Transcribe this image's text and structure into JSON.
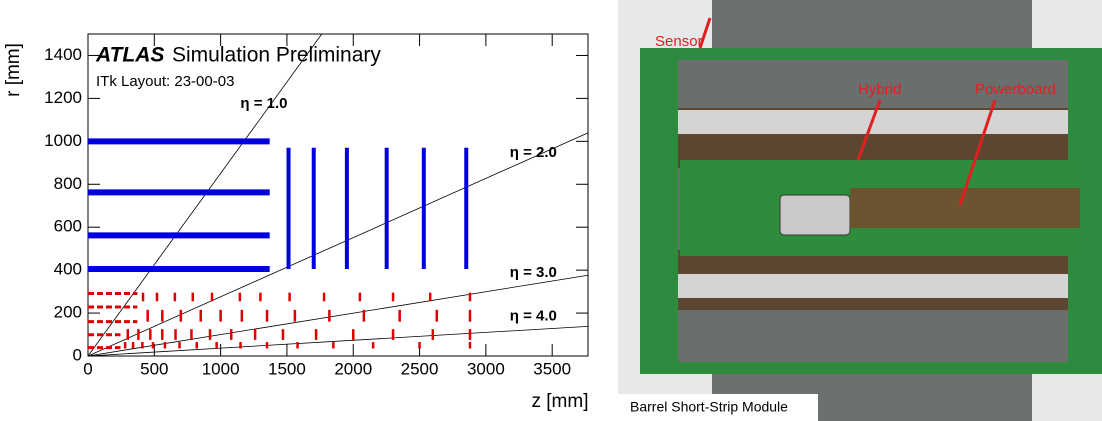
{
  "chart_data": {
    "type": "layout",
    "title": "Simulation Preliminary",
    "experiment": "ATLAS",
    "subtitle": "ITk Layout: 23-00-03",
    "x_label": "z [mm]",
    "y_label": "r [mm]",
    "xlim": [
      0,
      3770
    ],
    "ylim": [
      0,
      1500
    ],
    "xticks": [
      0,
      500,
      1000,
      1500,
      2000,
      2500,
      3000,
      3500
    ],
    "yticks": [
      0,
      200,
      400,
      600,
      800,
      1000,
      1200,
      1400
    ],
    "eta_lines": [
      {
        "value": 1,
        "label": "η = 1.0"
      },
      {
        "value": 2,
        "label": "η = 2.0"
      },
      {
        "value": 3,
        "label": "η = 3.0"
      },
      {
        "value": 4,
        "label": "η = 4.0"
      }
    ],
    "strip_color": "#0000dd",
    "pixel_color": "#dd0000",
    "strip_barrel": {
      "r": [
        405,
        562,
        762,
        1000
      ],
      "z": [
        0,
        1370
      ]
    },
    "strip_endcap": {
      "z": [
        1512,
        1702,
        1952,
        2252,
        2532,
        2852
      ],
      "r": [
        405,
        970
      ]
    },
    "pixel_barrel": {
      "r": [
        39,
        99,
        160,
        228,
        291
      ],
      "z_end": [
        245,
        245,
        372,
        372,
        372
      ]
    },
    "pixel_rings": [
      {
        "r": [
          255,
          295
        ],
        "z": [
          415,
          520,
          655,
          790,
          935,
          1145,
          1300,
          1520,
          1780,
          2050,
          2300,
          2580,
          2880
        ]
      },
      {
        "r": [
          160,
          215
        ],
        "z": [
          450,
          560,
          700,
          850,
          1000,
          1160,
          1350,
          1560,
          1820,
          2080,
          2350,
          2630,
          2880
        ]
      },
      {
        "r": [
          75,
          125
        ],
        "z": [
          300,
          380,
          470,
          560,
          660,
          780,
          920,
          1080,
          1260,
          1470,
          1720,
          2000,
          2300,
          2600,
          2880
        ]
      },
      {
        "r": [
          35,
          65
        ],
        "z": [
          280,
          340,
          410,
          490,
          580,
          690,
          820,
          970,
          1150,
          1350,
          1580,
          1850,
          2150,
          2500,
          2880
        ]
      }
    ]
  },
  "photo": {
    "labels": {
      "sensor": "Sensor",
      "hybrid": "Hybrid",
      "powerboard": "Powerboard"
    },
    "caption": "Barrel Short-Strip Module"
  }
}
